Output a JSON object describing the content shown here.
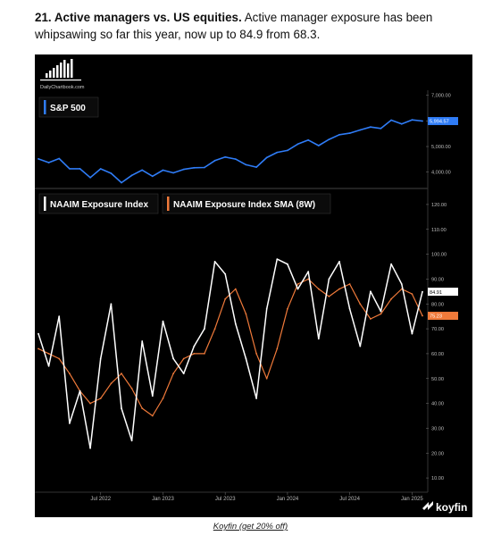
{
  "article": {
    "heading": "21. Active managers vs. US equities.",
    "body": "Active manager exposure has been whipsawing so far this year, now up to 84.9 from 68.3.",
    "caption": "Koyfin (get 20% off)"
  },
  "branding": {
    "watermark": "DailyChartbook.com",
    "vendor": "koyfin"
  },
  "colors": {
    "background": "#000000",
    "sp500": "#2f7cf6",
    "naaim": "#ffffff",
    "sma": "#f07a3a",
    "axis_text": "#bbbbbb"
  },
  "chart_data": [
    {
      "type": "line",
      "panel": "top",
      "legend": [
        "S&P 500"
      ],
      "y_ticks": [
        "7,000.00",
        "6,000.00",
        "5,000.00",
        "4,000.00"
      ],
      "ylim": [
        3500,
        7200
      ],
      "last_value_label": "5,994.57",
      "series": [
        {
          "name": "S&P 500",
          "x": [
            "2022-01",
            "2022-02",
            "2022-03",
            "2022-04",
            "2022-05",
            "2022-06",
            "2022-07",
            "2022-08",
            "2022-09",
            "2022-10",
            "2022-11",
            "2022-12",
            "2023-01",
            "2023-02",
            "2023-03",
            "2023-04",
            "2023-05",
            "2023-06",
            "2023-07",
            "2023-08",
            "2023-09",
            "2023-10",
            "2023-11",
            "2023-12",
            "2024-01",
            "2024-02",
            "2024-03",
            "2024-04",
            "2024-05",
            "2024-06",
            "2024-07",
            "2024-08",
            "2024-09",
            "2024-10",
            "2024-11",
            "2024-12",
            "2025-01",
            "2025-02"
          ],
          "values": [
            4516,
            4374,
            4530,
            4132,
            4132,
            3785,
            4130,
            3955,
            3586,
            3872,
            4080,
            3840,
            4077,
            3970,
            4109,
            4169,
            4180,
            4450,
            4589,
            4508,
            4288,
            4194,
            4568,
            4770,
            4846,
            5096,
            5254,
            5036,
            5278,
            5460,
            5522,
            5648,
            5762,
            5705,
            6032,
            5882,
            6041,
            5995
          ]
        }
      ]
    },
    {
      "type": "line",
      "panel": "bottom",
      "legend": [
        "NAAIM Exposure Index",
        "NAAIM Exposure Index  SMA (8W)"
      ],
      "y_ticks": [
        "120.00",
        "110.00",
        "100.00",
        "90.00",
        "80.00",
        "70.00",
        "60.00",
        "50.00",
        "40.00",
        "30.00",
        "20.00",
        "10.00"
      ],
      "ylim": [
        5,
        125
      ],
      "x_ticks": [
        "Jul 2022",
        "Jan 2023",
        "Jul 2023",
        "Jan 2024",
        "Jul 2024",
        "Jan 2025"
      ],
      "last_value_labels": [
        "84.91",
        "75.23"
      ],
      "series": [
        {
          "name": "NAAIM Exposure Index",
          "x": [
            "2022-01",
            "2022-02",
            "2022-03",
            "2022-04",
            "2022-05",
            "2022-06",
            "2022-07",
            "2022-08",
            "2022-09",
            "2022-10",
            "2022-11",
            "2022-12",
            "2023-01",
            "2023-02",
            "2023-03",
            "2023-04",
            "2023-05",
            "2023-06",
            "2023-07",
            "2023-08",
            "2023-09",
            "2023-10",
            "2023-11",
            "2023-12",
            "2024-01",
            "2024-02",
            "2024-03",
            "2024-04",
            "2024-05",
            "2024-06",
            "2024-07",
            "2024-08",
            "2024-09",
            "2024-10",
            "2024-11",
            "2024-12",
            "2025-01",
            "2025-02"
          ],
          "values": [
            68,
            55,
            75,
            32,
            45,
            22,
            58,
            80,
            38,
            25,
            65,
            43,
            73,
            58,
            52,
            63,
            70,
            97,
            92,
            72,
            58,
            42,
            78,
            98,
            96,
            86,
            93,
            66,
            90,
            97,
            78,
            63,
            85,
            77,
            96,
            88,
            68,
            84.9
          ]
        },
        {
          "name": "NAAIM Exposure Index  SMA (8W)",
          "x": [
            "2022-01",
            "2022-02",
            "2022-03",
            "2022-04",
            "2022-05",
            "2022-06",
            "2022-07",
            "2022-08",
            "2022-09",
            "2022-10",
            "2022-11",
            "2022-12",
            "2023-01",
            "2023-02",
            "2023-03",
            "2023-04",
            "2023-05",
            "2023-06",
            "2023-07",
            "2023-08",
            "2023-09",
            "2023-10",
            "2023-11",
            "2023-12",
            "2024-01",
            "2024-02",
            "2024-03",
            "2024-04",
            "2024-05",
            "2024-06",
            "2024-07",
            "2024-08",
            "2024-09",
            "2024-10",
            "2024-11",
            "2024-12",
            "2025-01",
            "2025-02"
          ],
          "values": [
            62,
            60,
            58,
            52,
            45,
            40,
            42,
            48,
            52,
            46,
            38,
            35,
            42,
            52,
            58,
            60,
            60,
            70,
            82,
            86,
            76,
            60,
            50,
            62,
            78,
            88,
            90,
            86,
            83,
            86,
            88,
            80,
            74,
            76,
            82,
            86,
            84,
            75.23
          ]
        }
      ]
    }
  ]
}
